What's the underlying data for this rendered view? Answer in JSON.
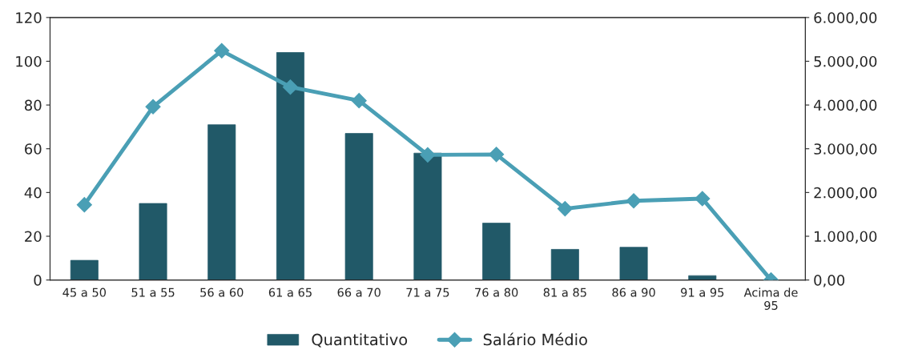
{
  "chart_data": {
    "type": "bar",
    "categories": [
      "45 a 50",
      "51 a 55",
      "56 a 60",
      "61 a 65",
      "66 a 70",
      "71 a 75",
      "76 a 80",
      "81 a 85",
      "86 a 90",
      "91 a 95",
      "Acima de\n95"
    ],
    "series": [
      {
        "name": "Quantitativo",
        "color": "#215968",
        "values": [
          9,
          35,
          71,
          104,
          67,
          58,
          26,
          14,
          15,
          2,
          0
        ]
      },
      {
        "name": "Salário Médio",
        "type": "line",
        "axis": "y2",
        "color": "#4a9fb5",
        "values": [
          1720,
          3960,
          5240,
          4410,
          4100,
          2860,
          2870,
          1630,
          1810,
          1860,
          0
        ]
      }
    ],
    "ylim": [
      0,
      120
    ],
    "yticks": [
      0,
      20,
      40,
      60,
      80,
      100,
      120
    ],
    "y2lim": [
      0,
      6000
    ],
    "y2ticks": [
      {
        "value": 0,
        "label": "0,00"
      },
      {
        "value": 1000,
        "label": "1.000,00"
      },
      {
        "value": 2000,
        "label": "2.000,00"
      },
      {
        "value": 3000,
        "label": "3.000,00"
      },
      {
        "value": 4000,
        "label": "4.000,00"
      },
      {
        "value": 5000,
        "label": "5.000,00"
      },
      {
        "value": 6000,
        "label": "6.000,00"
      }
    ],
    "marker": "diamond",
    "legend": "bottom",
    "grid": false
  }
}
